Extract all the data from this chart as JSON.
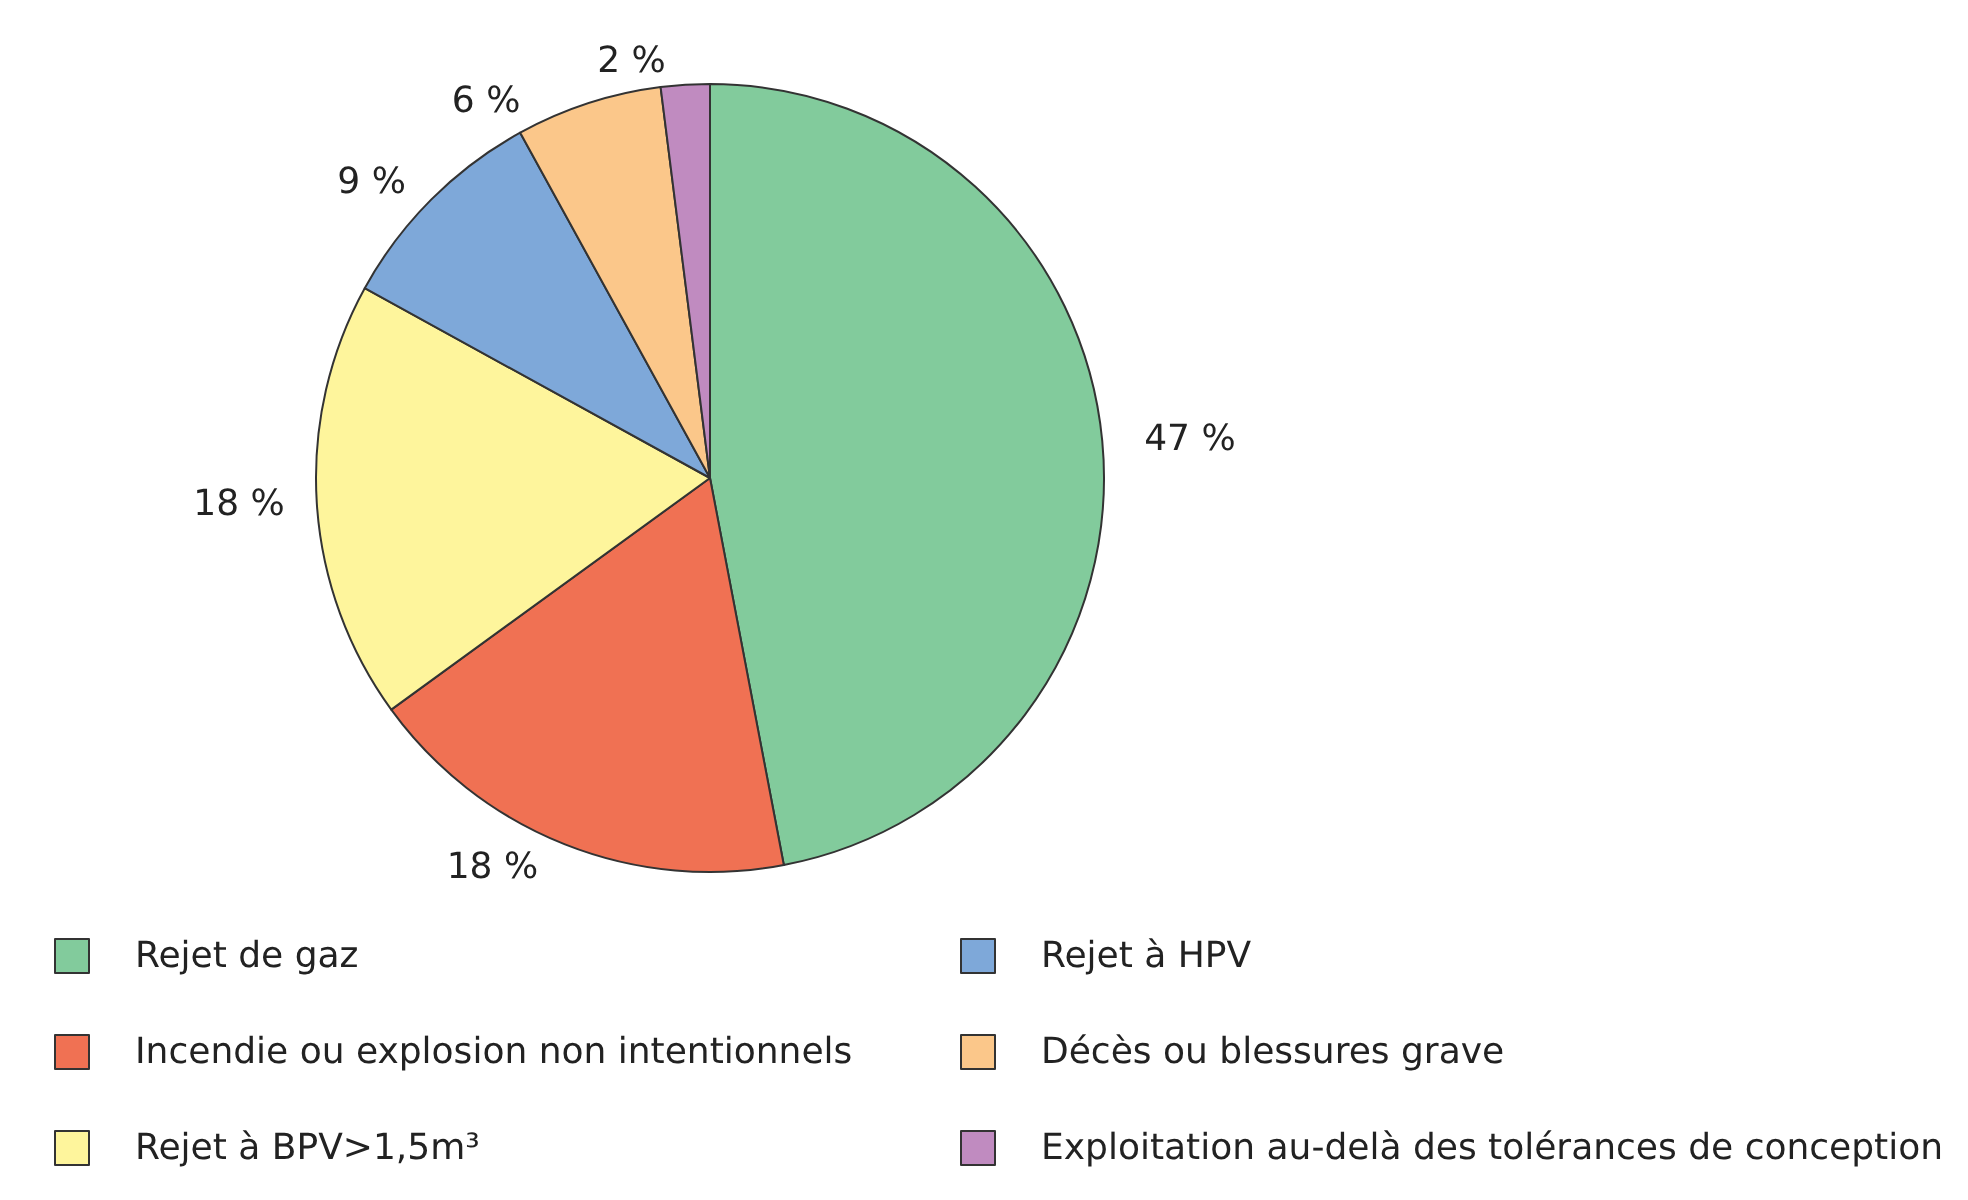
{
  "chart_data": {
    "type": "pie",
    "categories": [
      "Rejet de gaz",
      "Incendie ou explosion non intentionnels",
      "Rejet à BPV>1,5m³",
      "Rejet à HPV",
      "Décès ou blessures grave",
      "Exploitation au-delà des tolérances de conception"
    ],
    "values": [
      47,
      18,
      18,
      9,
      6,
      2
    ],
    "colors": [
      "#82cb9c",
      "#f07153",
      "#fef59c",
      "#7ea8d9",
      "#fbc78a",
      "#c08bc0"
    ],
    "value_labels": [
      "47 %",
      "18 %",
      "18 %",
      "9 %",
      "6 %",
      "2 %"
    ],
    "legend": "bottom"
  }
}
